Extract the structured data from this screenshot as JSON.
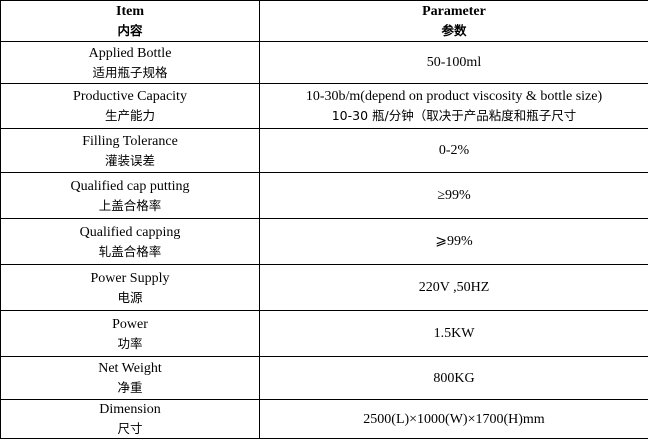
{
  "header": {
    "col1_en": "Item",
    "col1_zh": "内容",
    "col2_en": "Parameter",
    "col2_zh": "参数"
  },
  "rows": [
    {
      "item_en": "Applied Bottle",
      "item_zh": "适用瓶子规格",
      "value": "50-100ml"
    },
    {
      "item_en": "Productive Capacity",
      "item_zh": "生产能力",
      "value": "10-30b/m(depend on product viscosity & bottle size)",
      "value_zh": "10-30 瓶/分钟（取决于产品粘度和瓶子尺寸"
    },
    {
      "item_en": "Filling Tolerance",
      "item_zh": "灌装误差",
      "value": "0-2%"
    },
    {
      "item_en": "Qualified cap putting",
      "item_zh": "上盖合格率",
      "value": "≥99%"
    },
    {
      "item_en": "Qualified capping",
      "item_zh": "轧盖合格率",
      "value": "⩾99%"
    },
    {
      "item_en": "Power Supply",
      "item_zh": "电源",
      "value": "220V ,50HZ"
    },
    {
      "item_en": "Power",
      "item_zh": "功率",
      "value": "1.5KW"
    },
    {
      "item_en": "Net Weight",
      "item_zh": "净重",
      "value": "800KG"
    },
    {
      "item_en": "Dimension",
      "item_zh": "尺寸",
      "value": "2500(L)×1000(W)×1700(H)mm"
    }
  ]
}
